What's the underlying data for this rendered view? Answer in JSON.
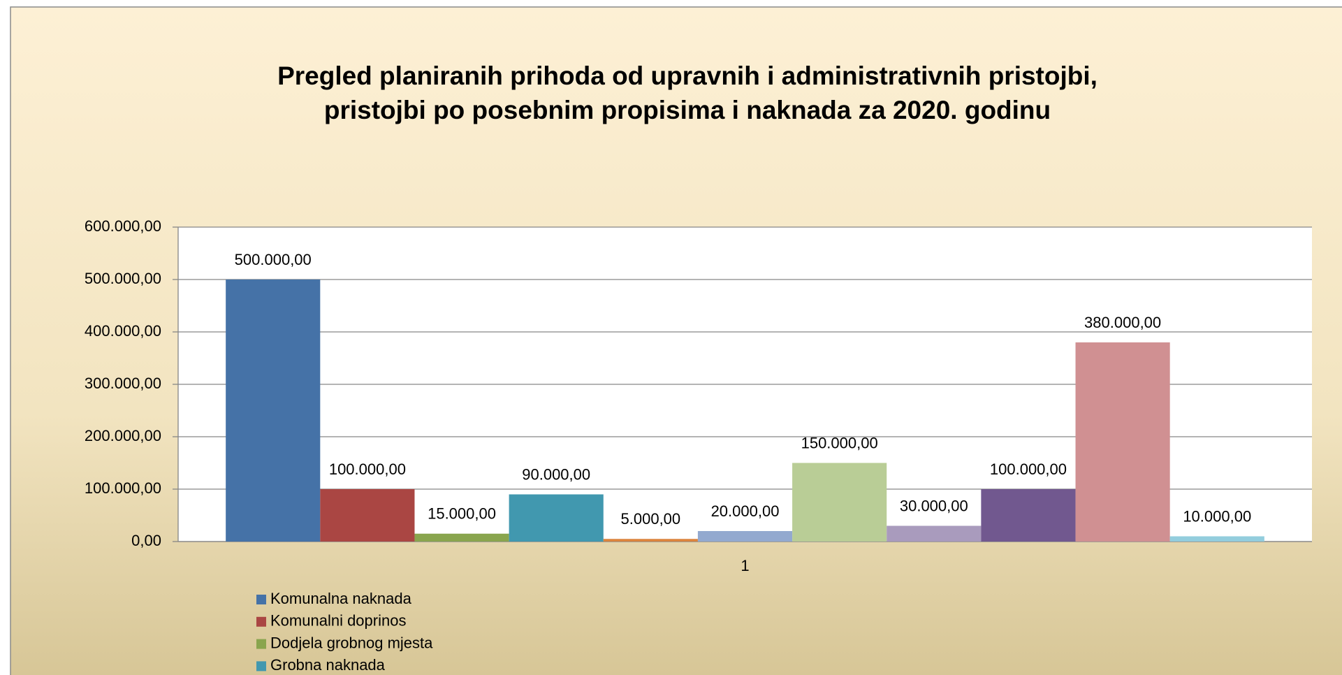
{
  "chart_data": {
    "type": "bar",
    "title": [
      "Pregled planiranih prihoda od upravnih i administrativnih pristojbi,",
      "pristojbi po posebnim propisima i naknada za 2020. godinu"
    ],
    "categories": [
      "1"
    ],
    "series": [
      {
        "name": "Komunalna naknada",
        "color": "#4572a7",
        "values": [
          500000
        ],
        "value_labels": [
          "500.000,00"
        ]
      },
      {
        "name": "Komunalni doprinos",
        "color": "#aa4643",
        "values": [
          100000
        ],
        "value_labels": [
          "100.000,00"
        ]
      },
      {
        "name": "Dodjela grobnog mjesta",
        "color": "#89a54e",
        "values": [
          15000
        ],
        "value_labels": [
          "15.000,00"
        ]
      },
      {
        "name": "Grobna naknada",
        "color": "#4198af",
        "values": [
          90000
        ],
        "value_labels": [
          "90.000,00"
        ]
      },
      {
        "color": "#db843d",
        "values": [
          5000
        ],
        "value_labels": [
          "5.000,00"
        ]
      },
      {
        "color": "#93a9cf",
        "values": [
          20000
        ],
        "value_labels": [
          "20.000,00"
        ]
      },
      {
        "color": "#b9cd96",
        "values": [
          150000
        ],
        "value_labels": [
          "150.000,00"
        ]
      },
      {
        "color": "#a99bbd",
        "values": [
          30000
        ],
        "value_labels": [
          "30.000,00"
        ]
      },
      {
        "color": "#71588f",
        "values": [
          100000
        ],
        "value_labels": [
          "100.000,00"
        ]
      },
      {
        "color": "#d09092",
        "values": [
          380000
        ],
        "value_labels": [
          "380.000,00"
        ]
      },
      {
        "color": "#93cddd",
        "values": [
          10000
        ],
        "value_labels": [
          "10.000,00"
        ]
      }
    ],
    "ylim": [
      0,
      600000
    ],
    "yticks": [
      {
        "value": 0,
        "label": "0,00"
      },
      {
        "value": 100000,
        "label": "100.000,00"
      },
      {
        "value": 200000,
        "label": "200.000,00"
      },
      {
        "value": 300000,
        "label": "300.000,00"
      },
      {
        "value": 400000,
        "label": "400.000,00"
      },
      {
        "value": 500000,
        "label": "500.000,00"
      },
      {
        "value": 600000,
        "label": "600.000,00"
      }
    ],
    "grid": true
  }
}
